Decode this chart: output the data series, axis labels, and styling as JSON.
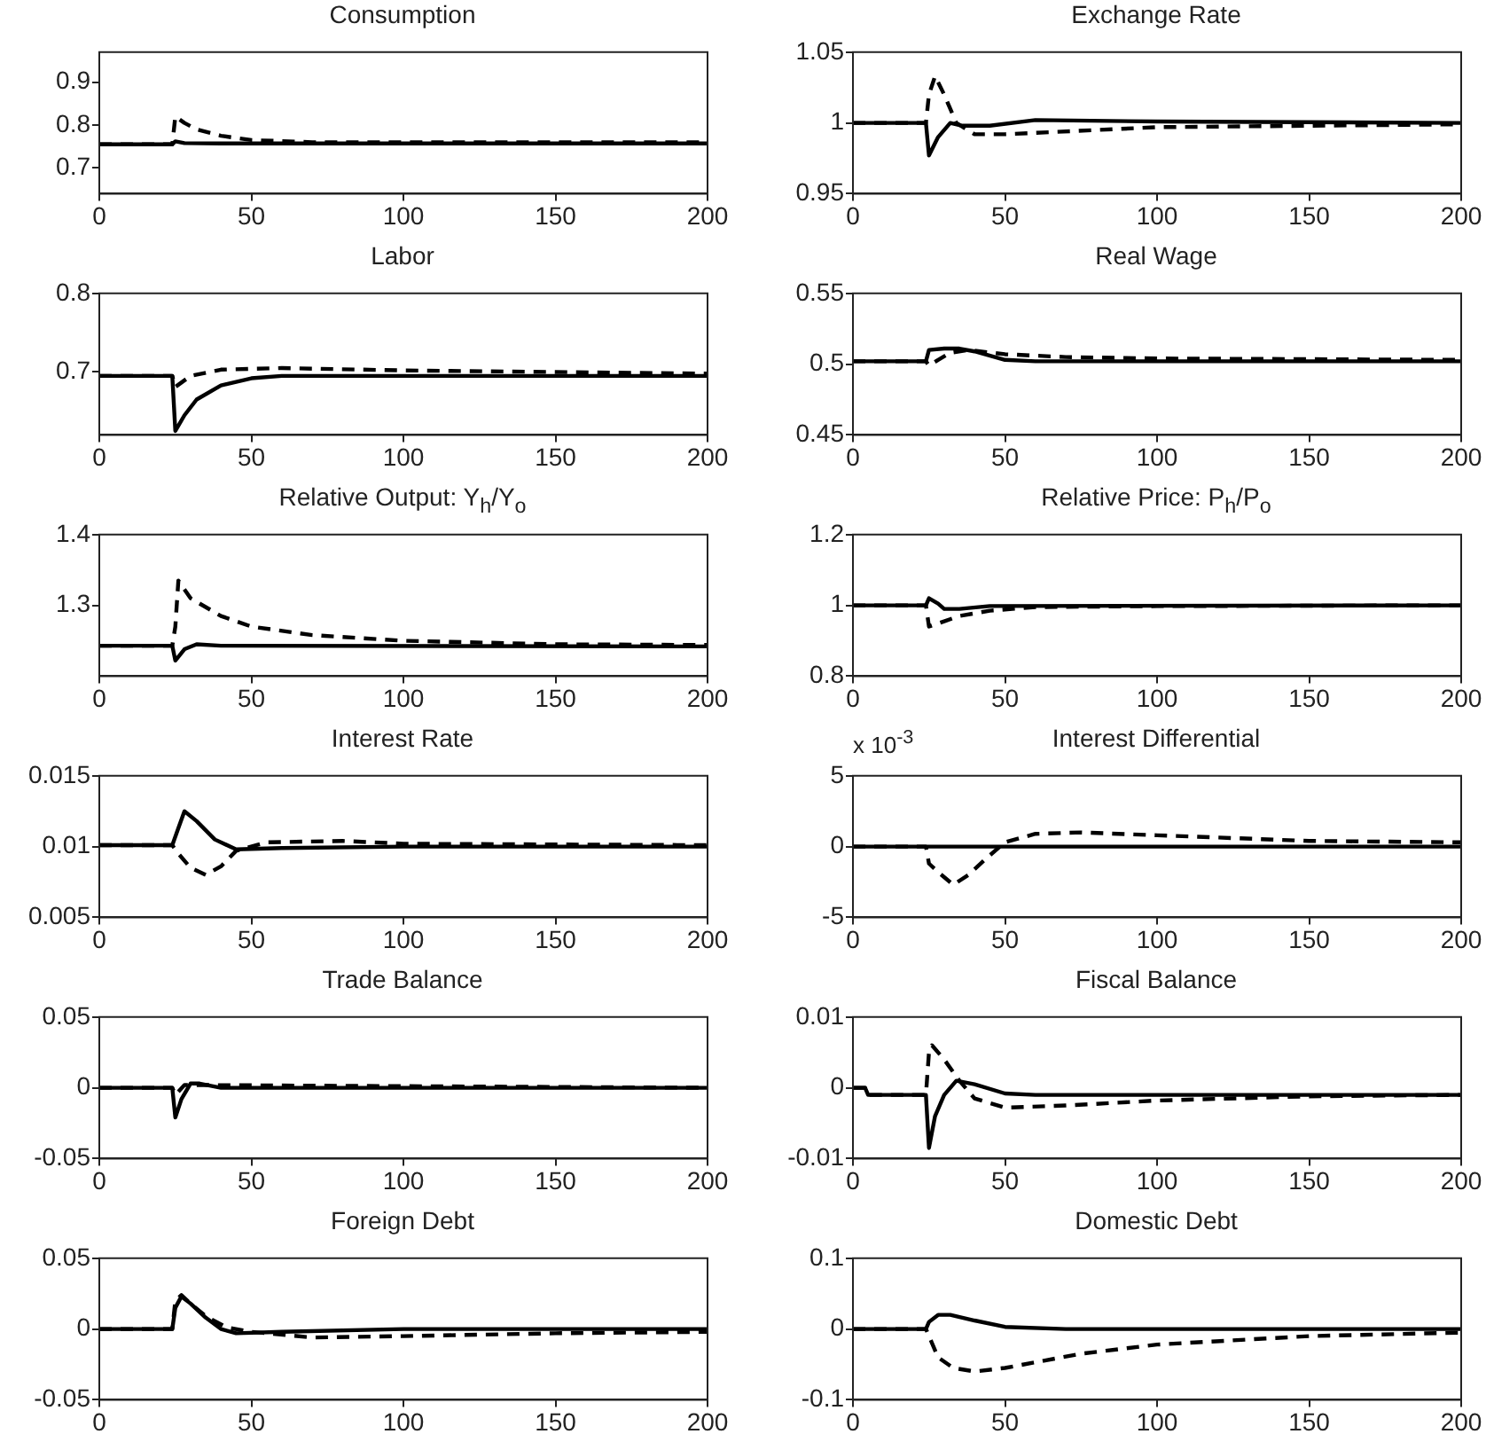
{
  "chart_data": [
    {
      "type": "line",
      "title": "Consumption",
      "xlim": [
        0,
        200
      ],
      "xticks": [
        0,
        50,
        100,
        150,
        200
      ],
      "ylim": [
        0.64,
        0.97
      ],
      "yticks": [
        0.7,
        0.8,
        0.9
      ],
      "series": [
        {
          "color": "#000000",
          "line_style": "solid",
          "x": [
            0,
            24,
            25,
            28,
            40,
            200
          ],
          "values": [
            0.755,
            0.755,
            0.762,
            0.758,
            0.757,
            0.757
          ]
        },
        {
          "color": "#000000",
          "line_style": "dashed",
          "x": [
            0,
            24,
            25,
            28,
            32,
            40,
            50,
            70,
            200
          ],
          "values": [
            0.755,
            0.755,
            0.82,
            0.805,
            0.79,
            0.775,
            0.765,
            0.76,
            0.76
          ]
        }
      ]
    },
    {
      "type": "line",
      "title": "Exchange Rate",
      "xlim": [
        0,
        200
      ],
      "xticks": [
        0,
        50,
        100,
        150,
        200
      ],
      "ylim": [
        0.95,
        1.05
      ],
      "yticks": [
        0.95,
        1,
        1.05
      ],
      "series": [
        {
          "color": "#000000",
          "line_style": "solid",
          "x": [
            0,
            24,
            25,
            28,
            32,
            36,
            45,
            60,
            100,
            200
          ],
          "values": [
            1,
            1,
            0.977,
            0.99,
            1.0,
            0.998,
            0.998,
            1.002,
            1.001,
            1.0
          ]
        },
        {
          "color": "#000000",
          "line_style": "dashed",
          "x": [
            0,
            24,
            25,
            27,
            30,
            34,
            40,
            50,
            100,
            200
          ],
          "values": [
            1,
            1,
            1.02,
            1.033,
            1.02,
            1.0,
            0.992,
            0.992,
            0.997,
            0.999
          ]
        }
      ]
    },
    {
      "type": "line",
      "title": "Labor",
      "xlim": [
        0,
        200
      ],
      "xticks": [
        0,
        50,
        100,
        150,
        200
      ],
      "ylim": [
        0.62,
        0.8
      ],
      "yticks": [
        0.7,
        0.8
      ],
      "series": [
        {
          "color": "#000000",
          "line_style": "solid",
          "x": [
            0,
            24,
            25,
            28,
            32,
            40,
            50,
            60,
            200
          ],
          "values": [
            0.695,
            0.695,
            0.625,
            0.645,
            0.665,
            0.683,
            0.692,
            0.695,
            0.695
          ]
        },
        {
          "color": "#000000",
          "line_style": "dashed",
          "x": [
            0,
            24,
            25,
            30,
            40,
            60,
            100,
            200
          ],
          "values": [
            0.695,
            0.695,
            0.681,
            0.695,
            0.703,
            0.705,
            0.702,
            0.698
          ]
        }
      ]
    },
    {
      "type": "line",
      "title": "Real Wage",
      "xlim": [
        0,
        200
      ],
      "xticks": [
        0,
        50,
        100,
        150,
        200
      ],
      "ylim": [
        0.45,
        0.55
      ],
      "yticks": [
        0.45,
        0.5,
        0.55
      ],
      "series": [
        {
          "color": "#000000",
          "line_style": "solid",
          "x": [
            0,
            24,
            25,
            30,
            35,
            40,
            50,
            60,
            200
          ],
          "values": [
            0.502,
            0.502,
            0.51,
            0.511,
            0.511,
            0.509,
            0.503,
            0.502,
            0.502
          ]
        },
        {
          "color": "#000000",
          "line_style": "dashed",
          "x": [
            0,
            24,
            25,
            28,
            32,
            38,
            50,
            70,
            100,
            200
          ],
          "values": [
            0.502,
            0.502,
            0.499,
            0.503,
            0.508,
            0.51,
            0.507,
            0.505,
            0.504,
            0.503
          ]
        }
      ]
    },
    {
      "type": "line",
      "title": "Relative Output: Y$_{h}$/Y$_{o}$",
      "xlim": [
        0,
        200
      ],
      "xticks": [
        0,
        50,
        100,
        150,
        200
      ],
      "ylim": [
        1.2,
        1.4
      ],
      "yticks": [
        1.3,
        1.4
      ],
      "series": [
        {
          "color": "#000000",
          "line_style": "solid",
          "x": [
            0,
            24,
            25,
            28,
            32,
            40,
            200
          ],
          "values": [
            1.243,
            1.243,
            1.222,
            1.238,
            1.245,
            1.243,
            1.242
          ]
        },
        {
          "color": "#000000",
          "line_style": "dashed",
          "x": [
            0,
            24,
            25,
            26,
            30,
            40,
            50,
            70,
            100,
            150,
            200
          ],
          "values": [
            1.243,
            1.243,
            1.27,
            1.335,
            1.31,
            1.285,
            1.27,
            1.258,
            1.25,
            1.245,
            1.244
          ]
        }
      ]
    },
    {
      "type": "line",
      "title": "Relative Price: P$_{h}$/P$_{o}$",
      "xlim": [
        0,
        200
      ],
      "xticks": [
        0,
        50,
        100,
        150,
        200
      ],
      "ylim": [
        0.8,
        1.2
      ],
      "yticks": [
        0.8,
        1,
        1.2
      ],
      "series": [
        {
          "color": "#000000",
          "line_style": "solid",
          "x": [
            0,
            24,
            25,
            28,
            30,
            35,
            45,
            200
          ],
          "values": [
            1.0,
            1.0,
            1.02,
            1.005,
            0.99,
            0.99,
            0.998,
            1.0
          ]
        },
        {
          "color": "#000000",
          "line_style": "dashed",
          "x": [
            0,
            24,
            25,
            30,
            35,
            45,
            60,
            100,
            200
          ],
          "values": [
            1.0,
            1.0,
            0.94,
            0.955,
            0.97,
            0.985,
            0.995,
            0.998,
            1.0
          ]
        }
      ]
    },
    {
      "type": "line",
      "title": "Interest Rate",
      "xlim": [
        0,
        200
      ],
      "xticks": [
        0,
        50,
        100,
        150,
        200
      ],
      "ylim": [
        0.005,
        0.015
      ],
      "yticks": [
        0.005,
        0.01,
        0.015
      ],
      "series": [
        {
          "color": "#000000",
          "line_style": "solid",
          "x": [
            0,
            24,
            26,
            28,
            32,
            38,
            45,
            60,
            100,
            200
          ],
          "values": [
            0.0101,
            0.0101,
            0.0113,
            0.0125,
            0.0118,
            0.0105,
            0.0098,
            0.0099,
            0.01,
            0.01
          ]
        },
        {
          "color": "#000000",
          "line_style": "dashed",
          "x": [
            0,
            24,
            26,
            30,
            35,
            40,
            45,
            55,
            80,
            100,
            200
          ],
          "values": [
            0.0101,
            0.0101,
            0.0095,
            0.0085,
            0.008,
            0.0086,
            0.0097,
            0.0103,
            0.0104,
            0.0102,
            0.0101
          ]
        }
      ]
    },
    {
      "type": "line",
      "title": "Interest Differential",
      "annotations": [
        "x 10$^{-3}$"
      ],
      "xlim": [
        0,
        200
      ],
      "xticks": [
        0,
        50,
        100,
        150,
        200
      ],
      "ylim": [
        -5,
        5
      ],
      "yticks": [
        -5,
        0,
        5
      ],
      "series": [
        {
          "color": "#000000",
          "line_style": "solid",
          "x": [
            0,
            200
          ],
          "values": [
            0,
            0
          ]
        },
        {
          "color": "#000000",
          "line_style": "dashed",
          "x": [
            0,
            24,
            25,
            28,
            33,
            38,
            44,
            50,
            60,
            75,
            100,
            150,
            200
          ],
          "values": [
            0,
            0,
            -1.2,
            -1.8,
            -2.7,
            -2.0,
            -0.8,
            0.3,
            0.9,
            1.0,
            0.8,
            0.4,
            0.3
          ]
        }
      ]
    },
    {
      "type": "line",
      "title": "Trade Balance",
      "xlim": [
        0,
        200
      ],
      "xticks": [
        0,
        50,
        100,
        150,
        200
      ],
      "ylim": [
        -0.05,
        0.05
      ],
      "yticks": [
        -0.05,
        0,
        0.05
      ],
      "series": [
        {
          "color": "#000000",
          "line_style": "solid",
          "x": [
            0,
            24,
            25,
            27,
            30,
            33,
            40,
            200
          ],
          "values": [
            0,
            0,
            -0.021,
            -0.008,
            0.003,
            0.003,
            0,
            0
          ]
        },
        {
          "color": "#000000",
          "line_style": "dashed",
          "x": [
            0,
            24,
            25,
            28,
            200
          ],
          "values": [
            0,
            0,
            -0.005,
            0.002,
            0
          ]
        }
      ]
    },
    {
      "type": "line",
      "title": "Fiscal Balance",
      "xlim": [
        0,
        200
      ],
      "xticks": [
        0,
        50,
        100,
        150,
        200
      ],
      "ylim": [
        -0.01,
        0.01
      ],
      "yticks": [
        -0.01,
        0,
        0.01
      ],
      "series": [
        {
          "color": "#000000",
          "line_style": "solid",
          "x": [
            0,
            4,
            5,
            24,
            25,
            27,
            30,
            34,
            40,
            50,
            60,
            200
          ],
          "values": [
            0,
            0,
            -0.001,
            -0.001,
            -0.0085,
            -0.004,
            -0.001,
            0.001,
            0.0005,
            -0.0008,
            -0.001,
            -0.001
          ]
        },
        {
          "color": "#000000",
          "line_style": "dashed",
          "x": [
            0,
            4,
            5,
            24,
            25,
            26,
            30,
            35,
            40,
            50,
            70,
            100,
            150,
            200
          ],
          "values": [
            0,
            0,
            -0.001,
            -0.001,
            0.005,
            0.006,
            0.004,
            0.001,
            -0.0015,
            -0.0028,
            -0.0025,
            -0.0018,
            -0.0012,
            -0.001
          ]
        }
      ]
    },
    {
      "type": "line",
      "title": "Foreign Debt",
      "xlim": [
        0,
        200
      ],
      "xticks": [
        0,
        50,
        100,
        150,
        200
      ],
      "ylim": [
        -0.05,
        0.05
      ],
      "yticks": [
        -0.05,
        0,
        0.05
      ],
      "series": [
        {
          "color": "#000000",
          "line_style": "solid",
          "x": [
            0,
            24,
            25,
            27,
            30,
            35,
            40,
            45,
            60,
            100,
            200
          ],
          "values": [
            0,
            0,
            0.015,
            0.023,
            0.018,
            0.008,
            0,
            -0.003,
            -0.002,
            0,
            0
          ]
        },
        {
          "color": "#000000",
          "line_style": "dashed",
          "x": [
            0,
            24,
            25,
            27,
            30,
            35,
            42,
            50,
            70,
            100,
            150,
            200
          ],
          "values": [
            0,
            0,
            0.02,
            0.024,
            0.018,
            0.009,
            0.001,
            -0.002,
            -0.006,
            -0.005,
            -0.003,
            -0.002
          ]
        }
      ]
    },
    {
      "type": "line",
      "title": "Domestic Debt",
      "xlim": [
        0,
        200
      ],
      "xticks": [
        0,
        50,
        100,
        150,
        200
      ],
      "ylim": [
        -0.1,
        0.1
      ],
      "yticks": [
        -0.1,
        0,
        0.1
      ],
      "series": [
        {
          "color": "#000000",
          "line_style": "solid",
          "x": [
            0,
            24,
            25,
            28,
            32,
            40,
            50,
            70,
            200
          ],
          "values": [
            0,
            0,
            0.01,
            0.02,
            0.02,
            0.012,
            0.003,
            0,
            0
          ]
        },
        {
          "color": "#000000",
          "line_style": "dashed",
          "x": [
            0,
            24,
            25,
            28,
            33,
            40,
            50,
            75,
            100,
            150,
            200
          ],
          "values": [
            0,
            0,
            -0.01,
            -0.04,
            -0.055,
            -0.06,
            -0.055,
            -0.035,
            -0.022,
            -0.01,
            -0.005
          ]
        }
      ]
    }
  ]
}
